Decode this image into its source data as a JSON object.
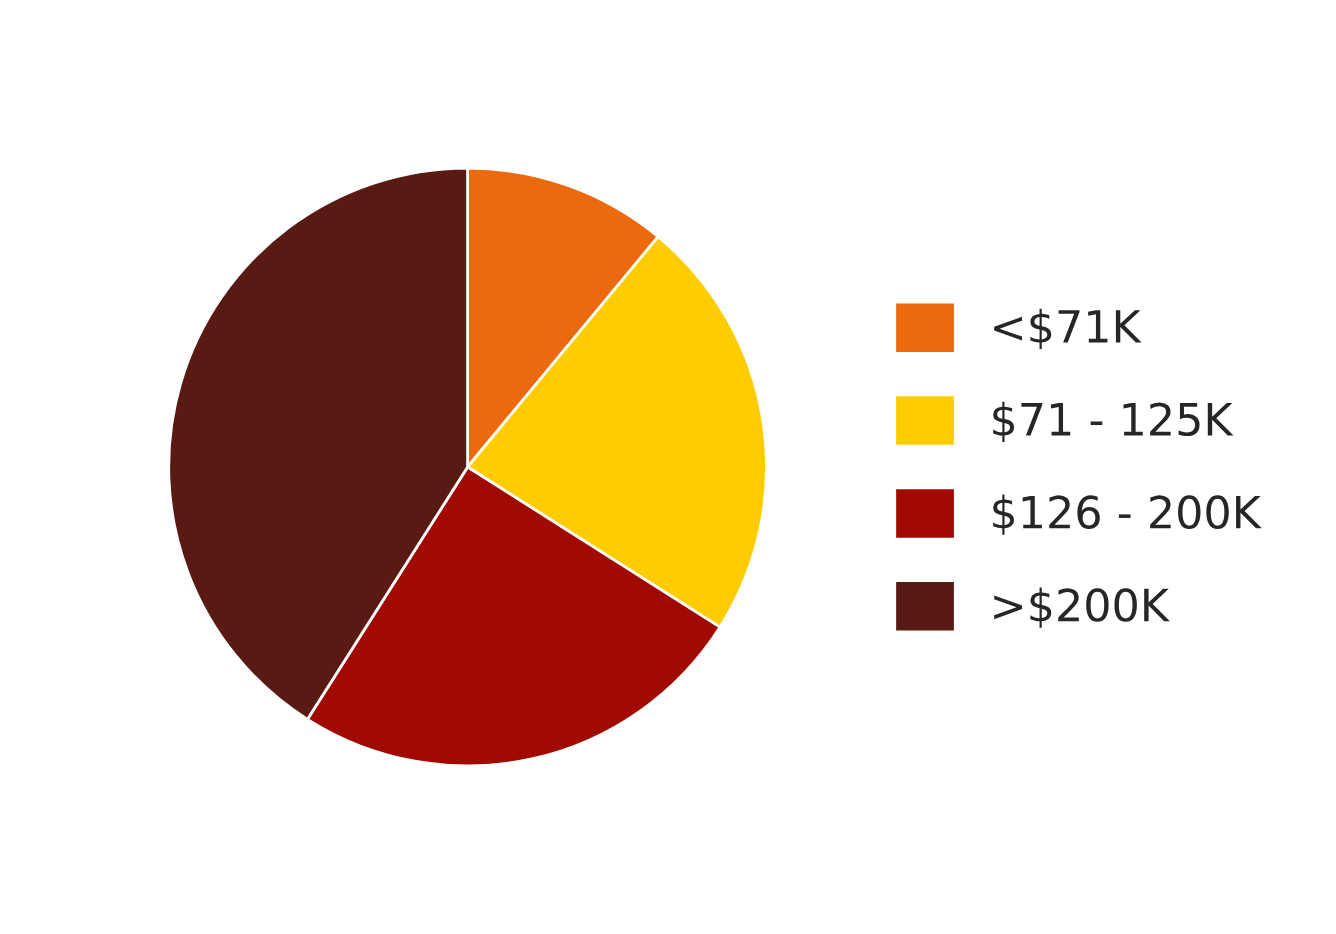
{
  "chart_data": {
    "type": "pie",
    "categories": [
      "<$71K",
      "$71 - 125K",
      "$126 - 200K",
      ">$200K"
    ],
    "values": [
      11,
      23,
      25,
      41
    ],
    "colors": [
      "#ec6a0e",
      "#ffcc00",
      "#a00a00",
      "#5a1a14"
    ],
    "legend": "right"
  }
}
